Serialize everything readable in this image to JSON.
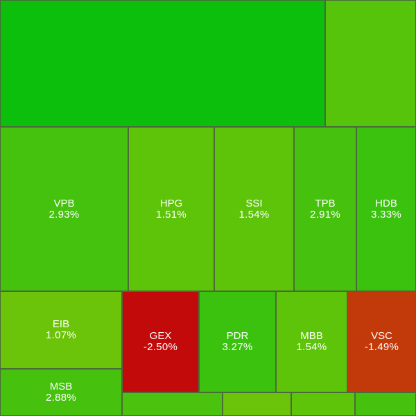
{
  "chart_data": {
    "type": "heatmap",
    "title": "",
    "cells": [
      {
        "symbol": "",
        "change": "",
        "color": "#0dbf0d"
      },
      {
        "symbol": "",
        "change": "",
        "color": "#55c40a"
      },
      {
        "symbol": "VPB",
        "change": "2.93%",
        "color": "#45c20e"
      },
      {
        "symbol": "HPG",
        "change": "1.51%",
        "color": "#5ec40a"
      },
      {
        "symbol": "SSI",
        "change": "1.54%",
        "color": "#5ec40a"
      },
      {
        "symbol": "TPB",
        "change": "2.91%",
        "color": "#46c20e"
      },
      {
        "symbol": "HDB",
        "change": "3.33%",
        "color": "#3bc20f"
      },
      {
        "symbol": "EIB",
        "change": "1.07%",
        "color": "#6cc40a"
      },
      {
        "symbol": "GEX",
        "change": "-2.50%",
        "color": "#c20a0a"
      },
      {
        "symbol": "PDR",
        "change": "3.27%",
        "color": "#3bc20f"
      },
      {
        "symbol": "MBB",
        "change": "1.54%",
        "color": "#5ec40a"
      },
      {
        "symbol": "VSC",
        "change": "-1.49%",
        "color": "#c23a0a"
      },
      {
        "symbol": "MSB",
        "change": "2.88%",
        "color": "#46c20e"
      },
      {
        "symbol": "",
        "change": "",
        "color": "#4bc20d"
      },
      {
        "symbol": "",
        "change": "",
        "color": "#6cc40a"
      },
      {
        "symbol": "",
        "change": "",
        "color": "#5ec40a"
      },
      {
        "symbol": "",
        "change": "",
        "color": "#46c20e"
      }
    ]
  }
}
